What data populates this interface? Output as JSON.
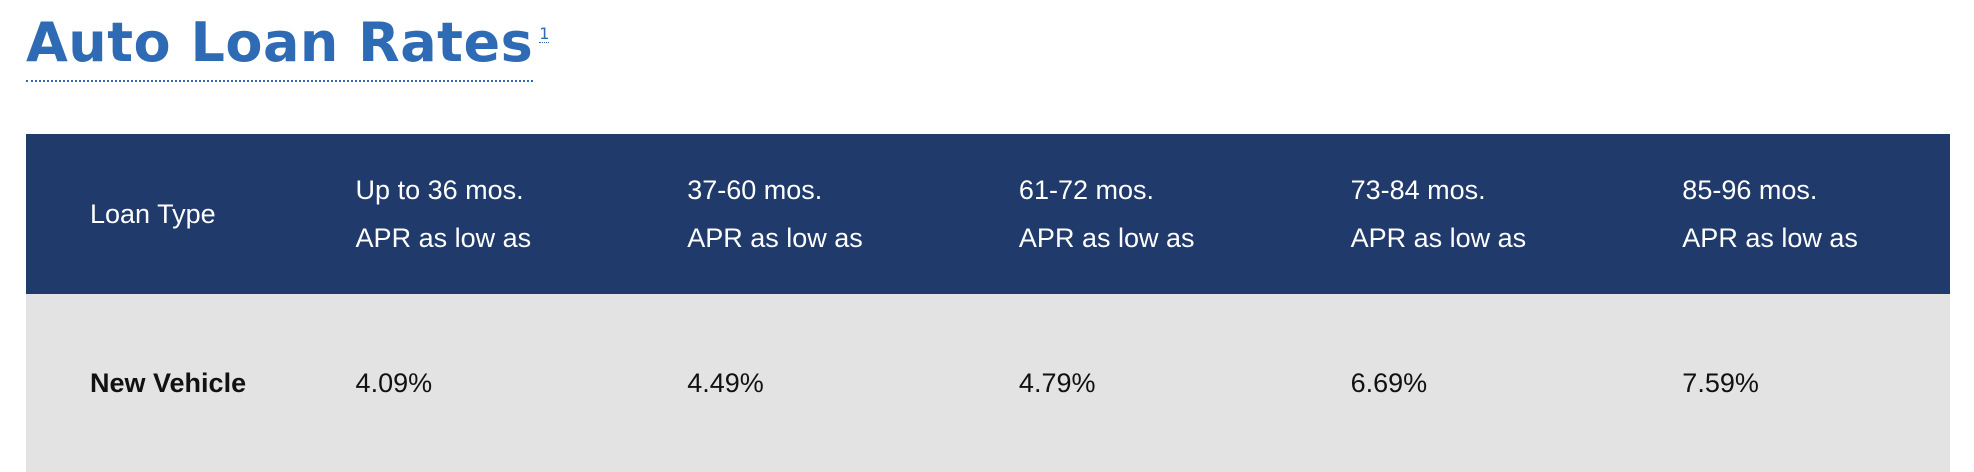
{
  "header": {
    "title": "Auto Loan Rates",
    "footnote": "1"
  },
  "colors": {
    "title": "#2f6bb5",
    "table_header_bg": "#1f3a6b",
    "table_row_bg": "#e3e3e3"
  },
  "table": {
    "columns": [
      {
        "line1": "Loan Type",
        "line2": ""
      },
      {
        "line1": "Up to 36 mos.",
        "line2": "APR as low as"
      },
      {
        "line1": "37-60 mos.",
        "line2": "APR as low as"
      },
      {
        "line1": "61-72 mos.",
        "line2": "APR as low as"
      },
      {
        "line1": "73-84 mos.",
        "line2": "APR as low as"
      },
      {
        "line1": "85-96 mos.",
        "line2": "APR as low as"
      }
    ],
    "rows": [
      {
        "label": "New Vehicle",
        "cells": [
          "4.09%",
          "4.49%",
          "4.79%",
          "6.69%",
          "7.59%"
        ]
      }
    ]
  }
}
